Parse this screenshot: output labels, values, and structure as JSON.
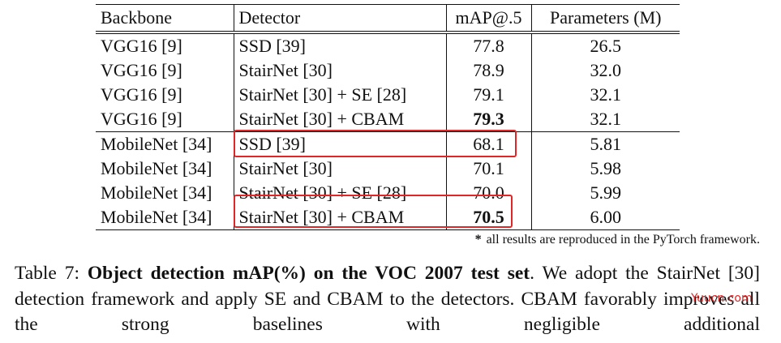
{
  "table": {
    "header": [
      "Backbone",
      "Detector",
      "mAP@.5",
      "Parameters (M)"
    ],
    "rows": [
      [
        "VGG16 [9]",
        "SSD [39]",
        "77.8",
        "26.5"
      ],
      [
        "VGG16 [9]",
        "StairNet [30]",
        "78.9",
        "32.0"
      ],
      [
        "VGG16 [9]",
        "StairNet [30] + SE [28]",
        "79.1",
        "32.1"
      ],
      [
        "VGG16 [9]",
        "StairNet [30] + CBAM",
        "79.3",
        "32.1"
      ],
      [
        "MobileNet [34]",
        "SSD [39]",
        "68.1",
        "5.81"
      ],
      [
        "MobileNet [34]",
        "StairNet [30]",
        "70.1",
        "5.98"
      ],
      [
        "MobileNet [34]",
        "StairNet [30] + SE [28]",
        "70.0",
        "5.99"
      ],
      [
        "MobileNet [34]",
        "StairNet [30] + CBAM",
        "70.5",
        "6.00"
      ]
    ]
  },
  "footnote": {
    "marker": "*",
    "text": "all results are reproduced in the PyTorch framework."
  },
  "caption": {
    "label": "Table 7:",
    "title": "Object detection mAP(%) on the VOC 2007 test set",
    "text": ". We adopt the StairNet [30] detection framework and apply SE and CBAM to the detectors. CBAM favorably improves all the strong baselines with negligible additional"
  },
  "watermark": "Yuucn.com"
}
